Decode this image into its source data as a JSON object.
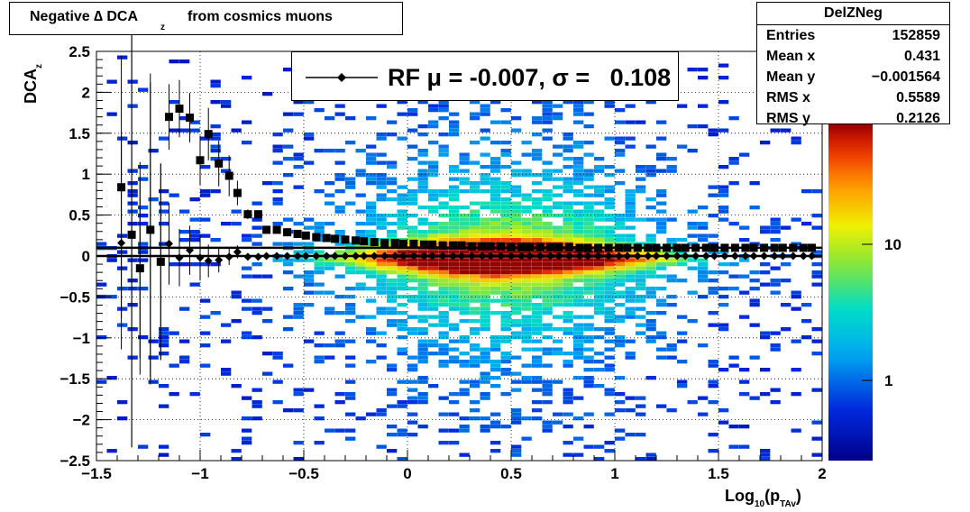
{
  "title": {
    "main": "Negative ∆ DCA",
    "sub": "z",
    "rest": " from cosmics muons"
  },
  "stats": {
    "name": "DelZNeg",
    "rows": [
      {
        "label": "Entries",
        "value": "152859"
      },
      {
        "label": "Mean x",
        "value": "0.431"
      },
      {
        "label": "Mean y",
        "value": "−0.001564"
      },
      {
        "label": "RMS x",
        "value": "0.5589"
      },
      {
        "label": "RMS y",
        "value": "0.2126"
      }
    ]
  },
  "legend": {
    "text": "RF μ = -0.007, σ =   0.108"
  },
  "axes": {
    "ylabel_main": "DCA",
    "ylabel_sub": "z",
    "xlabel_main": "Log",
    "xlabel_sub1": "10",
    "xlabel_mid": "(p",
    "xlabel_sub2": "TAv",
    "xlabel_end": ")"
  },
  "colors": {
    "frame": "#000000",
    "grid": "#000000",
    "marker": "#000000"
  },
  "chart_data": {
    "type": "heatmap",
    "xlim": [
      -1.5,
      2
    ],
    "ylim": [
      -2.5,
      2.5
    ],
    "x_ticks": [
      -1.5,
      -1,
      -0.5,
      0,
      0.5,
      1,
      1.5,
      2
    ],
    "x_tick_labels": [
      "−1.5",
      "−1",
      "−0.5",
      "0",
      "0.5",
      "1",
      "1.5",
      "2"
    ],
    "y_ticks": [
      -2.5,
      -2,
      -1.5,
      -1,
      -0.5,
      0,
      0.5,
      1,
      1.5,
      2,
      2.5
    ],
    "y_tick_labels": [
      "−2.5",
      "−2",
      "−1.5",
      "−1",
      "−0.5",
      "0",
      "0.5",
      "1",
      "1.5",
      "2",
      "2.5"
    ],
    "grid": true,
    "colorbar": {
      "scale": "log",
      "ticks": [
        1,
        10
      ],
      "tick_labels": [
        "1",
        "10"
      ]
    },
    "series": [
      {
        "marker": "square",
        "x": [
          -1.38,
          -1.33,
          -1.29,
          -1.24,
          -1.19,
          -1.15,
          -1.1,
          -1.05,
          -1.0,
          -0.96,
          -0.91,
          -0.86,
          -0.82,
          -0.77,
          -0.72,
          -0.68,
          -0.63,
          -0.58,
          -0.53,
          -0.49,
          -0.44,
          -0.39,
          -0.35,
          -0.3,
          -0.25,
          -0.21,
          -0.16,
          -0.11,
          -0.06,
          -0.02,
          0.03,
          0.08,
          0.12,
          0.17,
          0.22,
          0.26,
          0.31,
          0.36,
          0.4,
          0.45,
          0.5,
          0.55,
          0.59,
          0.64,
          0.69,
          0.73,
          0.78,
          0.83,
          0.87,
          0.92,
          0.97,
          1.02,
          1.06,
          1.11,
          1.16,
          1.2,
          1.25,
          1.3,
          1.34,
          1.39,
          1.44,
          1.48,
          1.53,
          1.58,
          1.63,
          1.67,
          1.72,
          1.77,
          1.81,
          1.86,
          1.91,
          1.95
        ],
        "y": [
          0.84,
          0.26,
          -0.15,
          0.32,
          -0.07,
          1.7,
          1.8,
          1.69,
          1.17,
          1.49,
          1.13,
          0.98,
          0.77,
          0.51,
          0.51,
          0.32,
          0.32,
          0.29,
          0.27,
          0.25,
          0.23,
          0.22,
          0.21,
          0.2,
          0.19,
          0.18,
          0.17,
          0.16,
          0.16,
          0.15,
          0.15,
          0.14,
          0.14,
          0.13,
          0.13,
          0.13,
          0.12,
          0.12,
          0.12,
          0.12,
          0.11,
          0.11,
          0.11,
          0.11,
          0.11,
          0.11,
          0.11,
          0.1,
          0.1,
          0.1,
          0.1,
          0.1,
          0.1,
          0.1,
          0.1,
          0.1,
          0.1,
          0.1,
          0.1,
          0.1,
          0.1,
          0.1,
          0.1,
          0.1,
          0.1,
          0.1,
          0.1,
          0.1,
          0.1,
          0.1,
          0.1,
          0.1
        ],
        "yerr": [
          1.6,
          2.6,
          1.3,
          1.8,
          1.2,
          0.4,
          0.35,
          0.3,
          0.3,
          0.32,
          0.28,
          0.25,
          0.15,
          0.06,
          0.05,
          0.04,
          0.03,
          0.03,
          0.02,
          0.02,
          0.02,
          0.02,
          0.02,
          0.01,
          0.01,
          0.01,
          0.01,
          0.01,
          0.01,
          0.01,
          0.01,
          0.01,
          0.01,
          0.01,
          0.01,
          0.01,
          0.01,
          0.01,
          0.01,
          0.01,
          0.01,
          0.01,
          0.01,
          0.01,
          0.01,
          0.01,
          0.01,
          0.01,
          0.01,
          0.01,
          0.01,
          0.01,
          0.01,
          0.01,
          0.01,
          0.01,
          0.01,
          0.01,
          0.01,
          0.01,
          0.01,
          0.01,
          0.01,
          0.01,
          0.01,
          0.01,
          0.01,
          0.01,
          0.01,
          0.01,
          0.01,
          0.01
        ]
      },
      {
        "marker": "diamond",
        "x": [
          -1.38,
          -1.33,
          -1.29,
          -1.24,
          -1.19,
          -1.15,
          -1.1,
          -1.05,
          -1.0,
          -0.96,
          -0.91,
          -0.86,
          -0.82,
          -0.77,
          -0.72,
          -0.68,
          -0.63,
          -0.58,
          -0.53,
          -0.49,
          -0.44,
          -0.39,
          -0.35,
          -0.3,
          -0.25,
          -0.21,
          -0.16,
          -0.11,
          -0.06,
          -0.02,
          0.03,
          0.08,
          0.12,
          0.17,
          0.22,
          0.26,
          0.31,
          0.36,
          0.4,
          0.45,
          0.5,
          0.55,
          0.59,
          0.64,
          0.69,
          0.73,
          0.78,
          0.83,
          0.87,
          0.92,
          0.97,
          1.02,
          1.06,
          1.11,
          1.16,
          1.2,
          1.25,
          1.3,
          1.34,
          1.39,
          1.44,
          1.48,
          1.53,
          1.58,
          1.63,
          1.67,
          1.72,
          1.77,
          1.81,
          1.86,
          1.91,
          1.95
        ],
        "y": [
          0.16,
          0.27,
          -0.15,
          0.33,
          -0.07,
          0.15,
          -0.02,
          0.07,
          -0.02,
          -0.06,
          -0.05,
          -0.01,
          0.05,
          -0.01,
          -0.01,
          0.0,
          0.0,
          0.0,
          0.0,
          0.0,
          0.0,
          0.0,
          0.0,
          0.0,
          0.0,
          0.0,
          0.0,
          0.0,
          0.0,
          0.0,
          0.0,
          0.0,
          0.0,
          0.0,
          0.0,
          0.0,
          0.0,
          0.0,
          0.0,
          0.0,
          0.0,
          0.0,
          0.0,
          0.0,
          0.0,
          0.0,
          0.0,
          0.0,
          0.0,
          0.0,
          0.0,
          0.0,
          0.0,
          0.0,
          0.0,
          0.0,
          0.0,
          0.0,
          0.0,
          0.0,
          0.0,
          0.0,
          0.0,
          0.0,
          0.0,
          0.0,
          0.0,
          0.0,
          0.0,
          0.0,
          0.0,
          0.0
        ],
        "yerr": [
          1.3,
          2.6,
          1.1,
          1.9,
          1.2,
          0.5,
          0.35,
          0.3,
          0.28,
          0.2,
          0.15,
          0.1,
          0.08,
          0.03,
          0.02,
          0.01,
          0.01,
          0.01,
          0.01,
          0.01,
          0.01,
          0.01,
          0.01,
          0.01,
          0.01,
          0.01,
          0.01,
          0.01,
          0.01,
          0.01,
          0.01,
          0.01,
          0.01,
          0.01,
          0.01,
          0.01,
          0.01,
          0.01,
          0.01,
          0.01,
          0.01,
          0.01,
          0.01,
          0.01,
          0.01,
          0.01,
          0.01,
          0.01,
          0.01,
          0.01,
          0.01,
          0.01,
          0.01,
          0.01,
          0.01,
          0.01,
          0.01,
          0.01,
          0.01,
          0.01,
          0.01,
          0.01,
          0.01,
          0.01,
          0.01,
          0.01,
          0.01,
          0.01,
          0.01,
          0.01,
          0.01,
          0.01
        ]
      }
    ],
    "horizontal_lines": [
      0.1,
      0.0
    ]
  }
}
